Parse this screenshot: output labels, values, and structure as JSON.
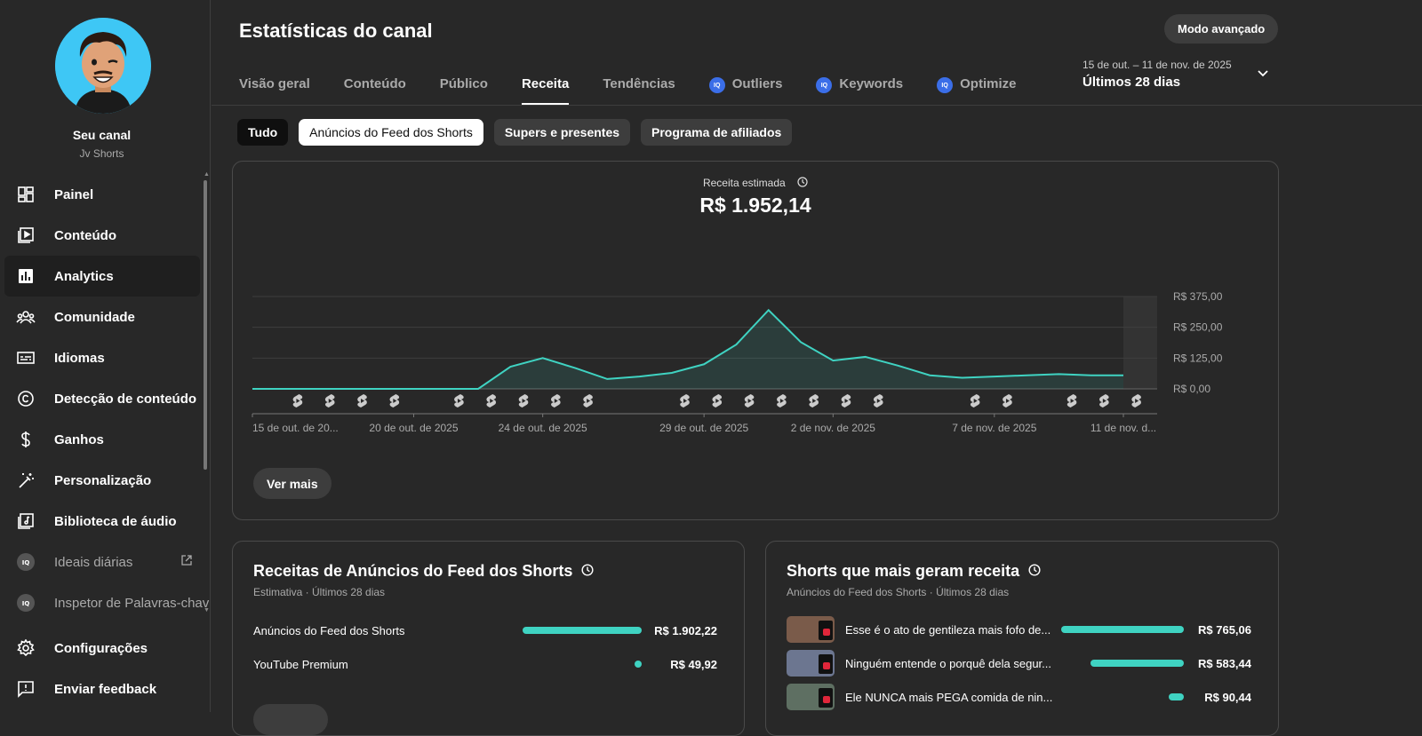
{
  "sidebar": {
    "channel_name": "Seu canal",
    "channel_handle": "Jv Shorts",
    "items": [
      {
        "label": "Painel",
        "icon": "dashboard-icon"
      },
      {
        "label": "Conteúdo",
        "icon": "content-icon"
      },
      {
        "label": "Analytics",
        "icon": "analytics-icon",
        "active": true
      },
      {
        "label": "Comunidade",
        "icon": "community-icon"
      },
      {
        "label": "Idiomas",
        "icon": "subtitles-icon"
      },
      {
        "label": "Detecção de conteúdo",
        "icon": "copyright-icon"
      },
      {
        "label": "Ganhos",
        "icon": "dollar-icon"
      },
      {
        "label": "Personalização",
        "icon": "magic-wand-icon"
      },
      {
        "label": "Biblioteca de áudio",
        "icon": "audio-library-icon"
      },
      {
        "label": "Ideais diárias",
        "icon": "vidiq-icon",
        "external": true
      },
      {
        "label": "Inspetor de Palavras-chav",
        "icon": "vidiq-icon"
      }
    ],
    "bottom": [
      {
        "label": "Configurações",
        "icon": "gear-icon"
      },
      {
        "label": "Enviar feedback",
        "icon": "feedback-icon"
      }
    ]
  },
  "header": {
    "title": "Estatísticas do canal",
    "advanced_button": "Modo avançado",
    "tabs": [
      "Visão geral",
      "Conteúdo",
      "Público",
      "Receita",
      "Tendências",
      "Outliers",
      "Keywords",
      "Optimize"
    ],
    "active_tab": "Receita",
    "date_range": "15 de out. – 11 de nov. de 2025",
    "period": "Últimos 28 dias"
  },
  "chips": [
    "Tudo",
    "Anúncios do Feed dos Shorts",
    "Supers e presentes",
    "Programa de afiliados"
  ],
  "kpi": {
    "label": "Receita estimada",
    "value": "R$ 1.952,14"
  },
  "chart_data": {
    "type": "area",
    "x": [
      "15 out",
      "16 out",
      "17 out",
      "18 out",
      "19 out",
      "20 out",
      "21 out",
      "22 out",
      "23 out",
      "24 out",
      "25 out",
      "26 out",
      "27 out",
      "28 out",
      "29 out",
      "30 out",
      "31 out",
      "1 nov",
      "2 nov",
      "3 nov",
      "4 nov",
      "5 nov",
      "6 nov",
      "7 nov",
      "8 nov",
      "9 nov",
      "10 nov",
      "11 nov"
    ],
    "values": [
      0,
      0,
      0,
      0,
      0,
      0,
      0,
      0,
      90,
      125,
      85,
      40,
      50,
      65,
      100,
      180,
      320,
      190,
      115,
      130,
      95,
      55,
      45,
      50,
      55,
      60,
      55,
      55
    ],
    "ylim": [
      0,
      375
    ],
    "y_ticks": [
      "R$ 0,00",
      "R$ 125,00",
      "R$ 250,00",
      "R$ 375,00"
    ],
    "x_tick_labels": [
      "15 de out. de 20...",
      "20 de out. de 2025",
      "24 de out. de 2025",
      "29 de out. de 2025",
      "2 de nov. de 2025",
      "7 de nov. de 2025",
      "11 de nov. d..."
    ],
    "shorts_marker_days": [
      1,
      2,
      3,
      4,
      6,
      7,
      8,
      9,
      10,
      13,
      14,
      15,
      16,
      17,
      18,
      19,
      22,
      23,
      25,
      26,
      27
    ],
    "color": "#3fd3c2"
  },
  "ver_mais": "Ver mais",
  "feed_card": {
    "title": "Receitas de Anúncios do Feed dos Shorts",
    "subtitle": "Estimativa · Últimos 28 dias",
    "rows": [
      {
        "label": "Anúncios do Feed dos Shorts",
        "value": "R$ 1.902,22",
        "share": 0.974
      },
      {
        "label": "YouTube Premium",
        "value": "R$ 49,92",
        "share": 0.026
      }
    ]
  },
  "top_shorts": {
    "title": "Shorts que mais geram receita",
    "subtitle": "Anúncios do Feed dos Shorts · Últimos 28 dias",
    "rows": [
      {
        "label": "Esse é o ato de gentileza mais fofo de...",
        "value": "R$ 765,06",
        "share": 1.0
      },
      {
        "label": "Ninguém entende o porquê dela segur...",
        "value": "R$ 583,44",
        "share": 0.76
      },
      {
        "label": "Ele NUNCA mais PEGA comida de nin...",
        "value": "R$ 90,44",
        "share": 0.12
      }
    ]
  }
}
